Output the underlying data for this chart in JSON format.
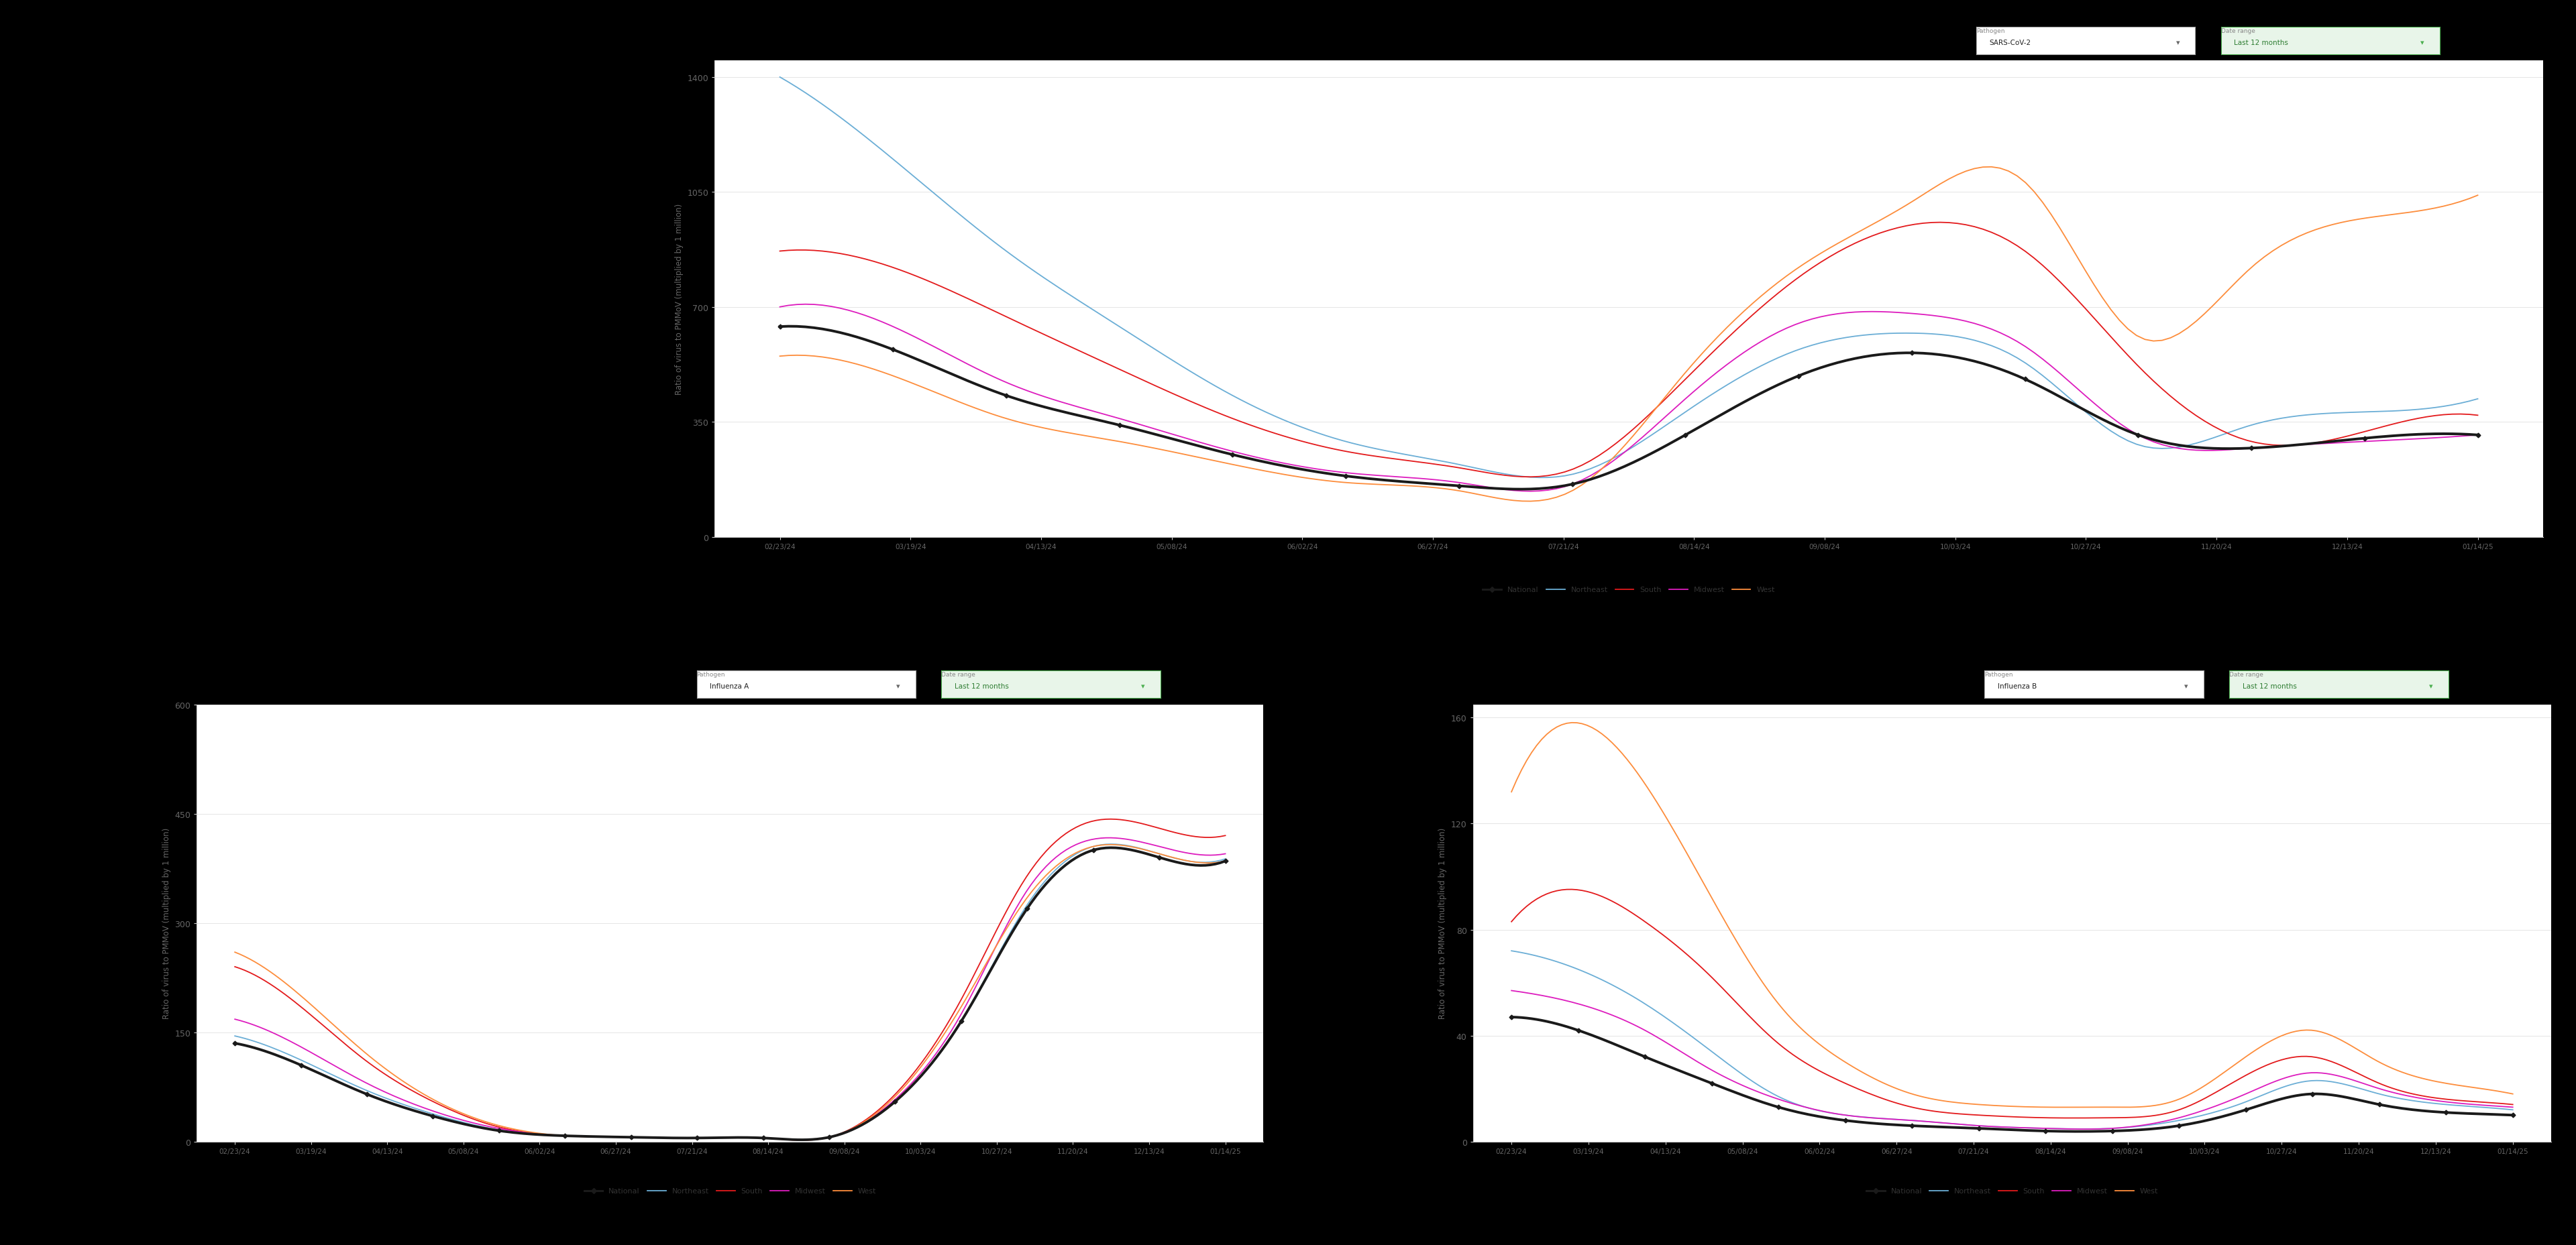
{
  "ylabel": "Ratio of virus to PMMoV (multiplied by 1 million)",
  "background_color": "#000000",
  "chart_bg": "#ffffff",
  "colors": {
    "National": "#1a1a1a",
    "Northeast": "#6baed6",
    "South": "#e31a1c",
    "Midwest": "#dd1cbe",
    "West": "#fd8d3c"
  },
  "line_widths": {
    "National": 2.8,
    "Northeast": 1.3,
    "South": 1.3,
    "Midwest": 1.3,
    "West": 1.3
  },
  "x_labels": [
    "02/23/24",
    "03/19/24",
    "04/13/24",
    "05/08/24",
    "06/02/24",
    "06/27/24",
    "07/21/24",
    "08/14/24",
    "09/08/24",
    "10/03/24",
    "10/27/24",
    "11/20/24",
    "12/13/24",
    "01/14/25"
  ],
  "covid_ylim": [
    0,
    1450
  ],
  "flu_a_ylim": [
    0,
    600
  ],
  "flu_b_ylim": [
    0,
    165
  ],
  "covid_yticks": [
    0,
    350,
    700,
    1050,
    1400
  ],
  "flu_a_yticks": [
    0,
    150,
    300,
    450,
    600
  ],
  "flu_b_yticks": [
    0,
    40,
    80,
    120,
    160
  ],
  "covid": {
    "National": [
      640,
      570,
      430,
      340,
      250,
      185,
      155,
      160,
      310,
      490,
      560,
      480,
      310,
      270,
      300,
      310
    ],
    "Northeast": [
      1400,
      1150,
      870,
      640,
      430,
      290,
      220,
      190,
      380,
      570,
      620,
      530,
      280,
      340,
      380,
      420
    ],
    "South": [
      870,
      820,
      670,
      510,
      360,
      260,
      210,
      205,
      480,
      790,
      950,
      870,
      520,
      290,
      320,
      370
    ],
    "Midwest": [
      700,
      640,
      470,
      360,
      260,
      195,
      165,
      160,
      420,
      650,
      680,
      580,
      310,
      270,
      290,
      310
    ],
    "West": [
      550,
      490,
      360,
      290,
      220,
      165,
      140,
      140,
      500,
      820,
      1020,
      1080,
      610,
      820,
      970,
      1040
    ]
  },
  "flu_a": {
    "National": [
      135,
      105,
      65,
      35,
      15,
      8,
      6,
      5,
      5,
      6,
      55,
      165,
      320,
      400,
      390,
      385
    ],
    "Northeast": [
      145,
      112,
      70,
      38,
      16,
      8,
      6,
      5,
      5,
      6,
      55,
      165,
      325,
      405,
      395,
      388
    ],
    "South": [
      240,
      185,
      110,
      55,
      20,
      8,
      6,
      5,
      5,
      6,
      65,
      195,
      365,
      440,
      430,
      420
    ],
    "Midwest": [
      168,
      130,
      80,
      42,
      18,
      8,
      6,
      5,
      5,
      6,
      58,
      175,
      345,
      415,
      405,
      395
    ],
    "West": [
      260,
      200,
      120,
      58,
      22,
      8,
      6,
      5,
      5,
      6,
      62,
      185,
      335,
      405,
      395,
      385
    ]
  },
  "flu_b": {
    "National": [
      47,
      42,
      32,
      22,
      13,
      8,
      6,
      5,
      4,
      4,
      6,
      12,
      18,
      14,
      11,
      10
    ],
    "Northeast": [
      72,
      65,
      52,
      34,
      17,
      10,
      8,
      6,
      5,
      5,
      8,
      15,
      23,
      18,
      14,
      12
    ],
    "South": [
      83,
      95,
      83,
      62,
      37,
      22,
      13,
      10,
      9,
      9,
      12,
      25,
      32,
      22,
      16,
      14
    ],
    "Midwest": [
      57,
      52,
      42,
      27,
      16,
      10,
      8,
      6,
      5,
      5,
      9,
      18,
      26,
      20,
      15,
      13
    ],
    "West": [
      132,
      158,
      135,
      92,
      52,
      30,
      18,
      14,
      13,
      13,
      16,
      32,
      42,
      30,
      22,
      18
    ]
  },
  "n_points_covid": 80,
  "n_points_flu": 80
}
